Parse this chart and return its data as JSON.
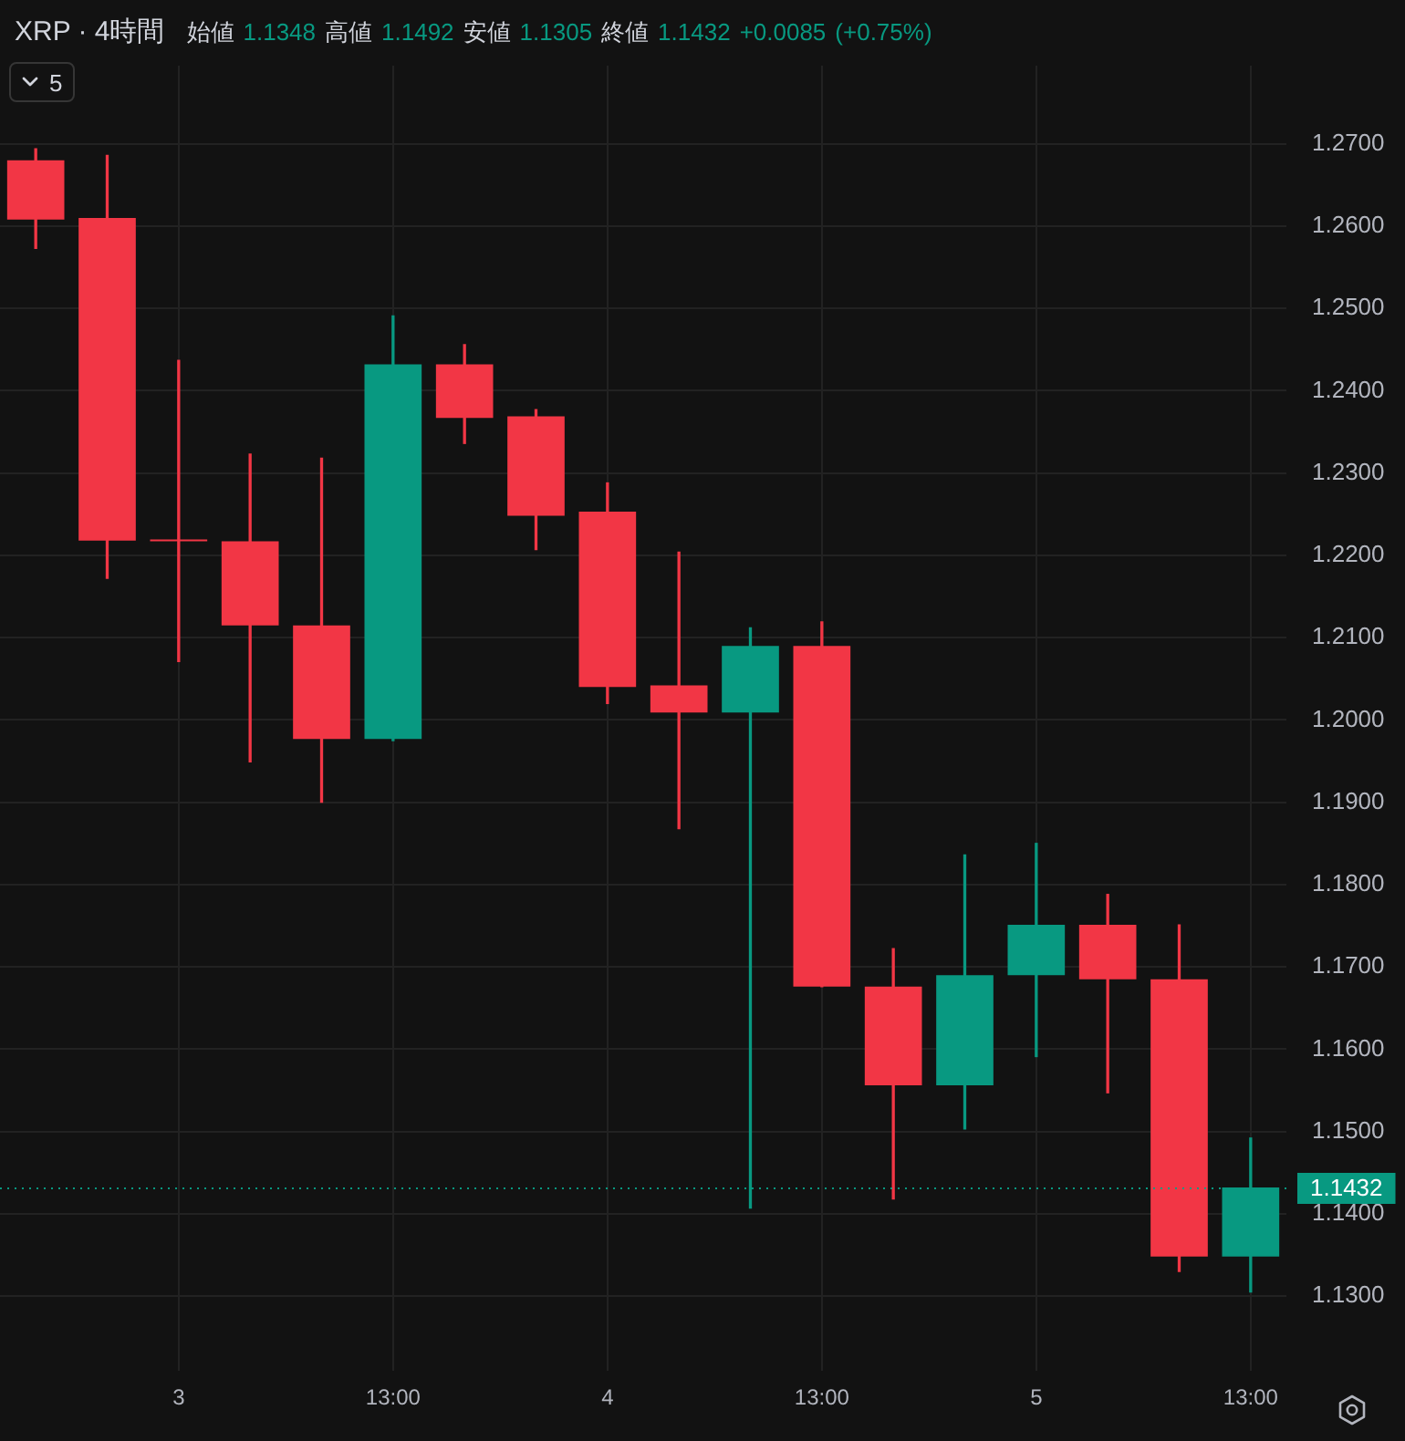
{
  "chart_data": {
    "type": "candlestick",
    "title": "XRP · 4時間",
    "subtitle": "始値 1.1348 高値 1.1492 安値 1.1305 終値 1.1432 +0.0085 (+0.75%)",
    "annotations": [
      "5"
    ],
    "categories": [
      null,
      null,
      "3",
      null,
      null,
      "13:00",
      null,
      null,
      "4",
      null,
      null,
      "13:00",
      null,
      null,
      "5",
      null,
      null,
      "13:00"
    ],
    "ohlc": [
      [
        1.268,
        1.2694,
        1.2573,
        1.2608
      ],
      [
        1.261,
        1.2686,
        1.2172,
        1.2218
      ],
      [
        1.2218,
        1.2437,
        1.2071,
        1.2217
      ],
      [
        1.2217,
        1.2323,
        1.1949,
        1.2115
      ],
      [
        1.2115,
        1.2318,
        1.19,
        1.1977
      ],
      [
        1.1977,
        1.2491,
        1.1975,
        1.2432
      ],
      [
        1.2432,
        1.2456,
        1.2336,
        1.2367
      ],
      [
        1.2369,
        1.2377,
        1.2207,
        1.2248
      ],
      [
        1.2253,
        1.2288,
        1.202,
        1.204
      ],
      [
        1.2042,
        1.2204,
        1.1868,
        1.2009
      ],
      [
        1.2009,
        1.2112,
        1.1407,
        1.209
      ],
      [
        1.209,
        1.2119,
        1.1676,
        1.1676
      ],
      [
        1.1676,
        1.1722,
        1.1418,
        1.1556
      ],
      [
        1.1556,
        1.1836,
        1.1503,
        1.169
      ],
      [
        1.169,
        1.185,
        1.1591,
        1.1751
      ],
      [
        1.1751,
        1.1788,
        1.1547,
        1.1685
      ],
      [
        1.1685,
        1.1751,
        1.133,
        1.1348
      ],
      [
        1.1348,
        1.1492,
        1.1305,
        1.1432
      ]
    ],
    "colors": [
      "#f23645",
      "#f23645",
      "#f23645",
      "#f23645",
      "#f23645",
      "#089981",
      "#f23645",
      "#f23645",
      "#f23645",
      "#f23645",
      "#089981",
      "#f23645",
      "#f23645",
      "#089981",
      "#089981",
      "#f23645",
      "#f23645",
      "#089981"
    ],
    "ylim": [
      1.1209,
      1.2795
    ],
    "yticks": [
      {
        "value": 1.13,
        "label": "1.1300"
      },
      {
        "value": 1.14,
        "label": "1.1400"
      },
      {
        "value": 1.15,
        "label": "1.1500"
      },
      {
        "value": 1.16,
        "label": "1.1600"
      },
      {
        "value": 1.17,
        "label": "1.1700"
      },
      {
        "value": 1.18,
        "label": "1.1800"
      },
      {
        "value": 1.19,
        "label": "1.1900"
      },
      {
        "value": 1.2,
        "label": "1.2000"
      },
      {
        "value": 1.21,
        "label": "1.2100"
      },
      {
        "value": 1.22,
        "label": "1.2200"
      },
      {
        "value": 1.23,
        "label": "1.2300"
      },
      {
        "value": 1.24,
        "label": "1.2400"
      },
      {
        "value": 1.25,
        "label": "1.2500"
      },
      {
        "value": 1.26,
        "label": "1.2600"
      },
      {
        "value": 1.27,
        "label": "1.2700"
      }
    ],
    "grid": true,
    "ref_lines": [
      {
        "axis": "y",
        "value": 1.1432,
        "label": "1.1432",
        "color": "#089981",
        "line_style": "dotted"
      }
    ]
  }
}
